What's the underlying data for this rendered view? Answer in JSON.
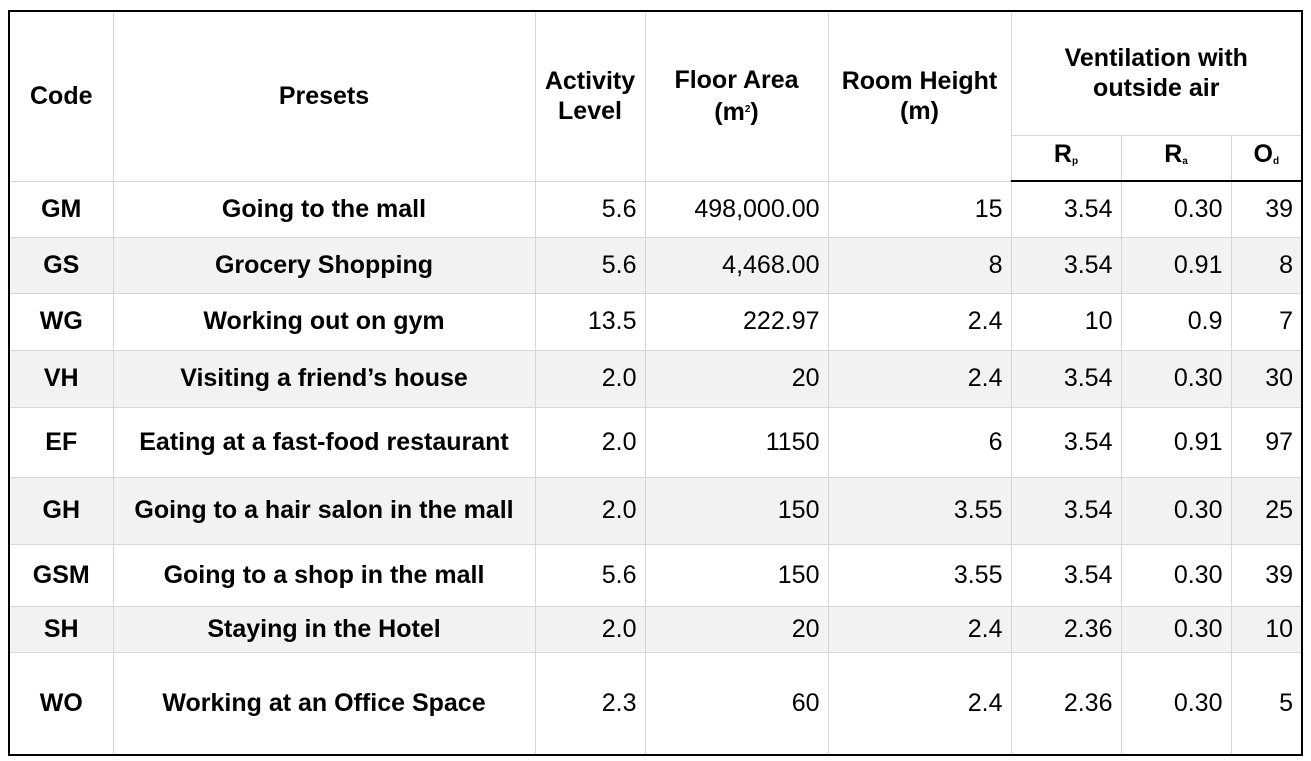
{
  "table": {
    "headers": {
      "code": "Code",
      "presets": "Presets",
      "activity": {
        "line1": "Activity",
        "line2": "Level"
      },
      "floor_area": {
        "line1": "Floor Area",
        "line2_pre": "(m",
        "line2_sup": "2",
        "line2_post": ")"
      },
      "room_height": {
        "line1": "Room Height",
        "line2": "(m)"
      },
      "ventilation": {
        "line1": "Ventilation with",
        "line2": "outside air"
      },
      "rp": {
        "letter": "R",
        "sub": "p"
      },
      "ra": {
        "letter": "R",
        "sub": "a"
      },
      "od": {
        "letter": "O",
        "sub": "d"
      }
    },
    "rows": [
      {
        "code": "GM",
        "preset": "Going to the mall",
        "activity": "5.6",
        "floor_area": "498,000.00",
        "room_height": "15",
        "rp": "3.54",
        "ra": "0.30",
        "od": "39"
      },
      {
        "code": "GS",
        "preset": "Grocery Shopping",
        "activity": "5.6",
        "floor_area": "4,468.00",
        "room_height": "8",
        "rp": "3.54",
        "ra": "0.91",
        "od": "8"
      },
      {
        "code": "WG",
        "preset": "Working out on gym",
        "activity": "13.5",
        "floor_area": "222.97",
        "room_height": "2.4",
        "rp": "10",
        "ra": "0.9",
        "od": "7"
      },
      {
        "code": "VH",
        "preset": "Visiting a friend’s house",
        "activity": "2.0",
        "floor_area": "20",
        "room_height": "2.4",
        "rp": "3.54",
        "ra": "0.30",
        "od": "30"
      },
      {
        "code": "EF",
        "preset": "Eating at a fast-food restaurant",
        "activity": "2.0",
        "floor_area": "1150",
        "room_height": "6",
        "rp": "3.54",
        "ra": "0.91",
        "od": "97"
      },
      {
        "code": "GH",
        "preset": "Going to a hair salon in the mall",
        "activity": "2.0",
        "floor_area": "150",
        "room_height": "3.55",
        "rp": "3.54",
        "ra": "0.30",
        "od": "25"
      },
      {
        "code": "GSM",
        "preset": "Going to a shop in the mall",
        "activity": "5.6",
        "floor_area": "150",
        "room_height": "3.55",
        "rp": "3.54",
        "ra": "0.30",
        "od": "39"
      },
      {
        "code": "SH",
        "preset": "Staying in the Hotel",
        "activity": "2.0",
        "floor_area": "20",
        "room_height": "2.4",
        "rp": "2.36",
        "ra": "0.30",
        "od": "10"
      },
      {
        "code": "WO",
        "preset": "Working at an Office Space",
        "activity": "2.3",
        "floor_area": "60",
        "room_height": "2.4",
        "rp": "2.36",
        "ra": "0.30",
        "od": "5"
      }
    ]
  }
}
